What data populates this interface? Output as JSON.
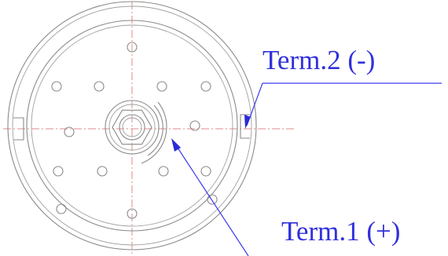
{
  "labels": {
    "terminal_2": "Term.2 (-)",
    "terminal_1": "Term.1 (+)"
  },
  "colors": {
    "outline": "#8a8a8a",
    "center_line": "#e08a8a",
    "callout": "#3030dd"
  }
}
